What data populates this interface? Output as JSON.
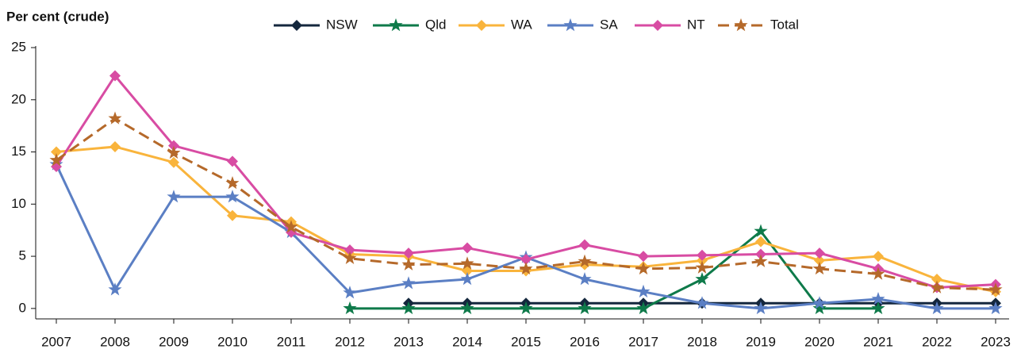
{
  "chart_data": {
    "type": "line",
    "y_label": "Per cent (crude)",
    "categories": [
      "2007",
      "2008",
      "2009",
      "2010",
      "2011",
      "2012",
      "2013",
      "2014",
      "2015",
      "2016",
      "2017",
      "2018",
      "2019",
      "2020",
      "2021",
      "2022",
      "2023"
    ],
    "ylim": [
      -1,
      25
    ],
    "yticks": [
      0,
      5,
      10,
      15,
      20,
      25
    ],
    "grid": false,
    "series": [
      {
        "name": "NSW",
        "color": "#14273d",
        "marker": "diamond",
        "dash": false,
        "values": [
          null,
          null,
          null,
          null,
          null,
          null,
          0.5,
          0.5,
          0.5,
          0.5,
          0.5,
          0.5,
          0.5,
          0.5,
          0.5,
          0.5,
          0.5
        ]
      },
      {
        "name": "Qld",
        "color": "#0e7a4a",
        "marker": "star",
        "dash": false,
        "values": [
          null,
          null,
          null,
          null,
          null,
          0,
          0,
          0,
          0,
          0,
          0,
          2.8,
          7.4,
          0,
          0,
          null,
          null
        ]
      },
      {
        "name": "WA",
        "color": "#f9b43c",
        "marker": "diamond",
        "dash": false,
        "values": [
          15.0,
          15.5,
          14.0,
          8.9,
          8.3,
          5.2,
          5.0,
          3.6,
          3.6,
          4.2,
          4.0,
          4.6,
          6.4,
          4.6,
          5.0,
          2.8,
          1.6
        ]
      },
      {
        "name": "SA",
        "color": "#5b7fc4",
        "marker": "star",
        "dash": false,
        "values": [
          13.8,
          1.8,
          10.7,
          10.7,
          7.3,
          1.5,
          2.4,
          2.8,
          4.9,
          2.8,
          1.6,
          0.5,
          0,
          0.5,
          0.9,
          0,
          0
        ]
      },
      {
        "name": "NT",
        "color": "#d84ca3",
        "marker": "diamond",
        "dash": false,
        "values": [
          13.6,
          22.3,
          15.6,
          14.1,
          7.3,
          5.6,
          5.3,
          5.8,
          4.7,
          6.1,
          5.0,
          5.1,
          5.2,
          5.3,
          3.8,
          2.0,
          2.3
        ]
      },
      {
        "name": "Total",
        "color": "#b5692a",
        "marker": "star",
        "dash": true,
        "values": [
          14.2,
          18.2,
          14.9,
          12.0,
          7.8,
          4.8,
          4.2,
          4.3,
          3.8,
          4.5,
          3.8,
          3.9,
          4.5,
          3.8,
          3.3,
          2.0,
          1.8
        ]
      }
    ]
  }
}
